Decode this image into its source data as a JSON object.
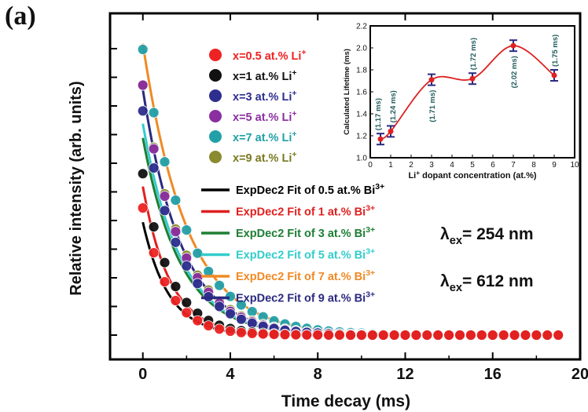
{
  "panel_label": "(a)",
  "chart_data": [
    {
      "type": "scatter",
      "xlabel": "Time decay (ms)",
      "ylabel": "Relative intensity (arb. units)",
      "xlim": [
        -1.5,
        20
      ],
      "x_ticks": [
        "0",
        "4",
        "8",
        "12",
        "16",
        "20"
      ],
      "x_tick_values": [
        0,
        4,
        8,
        12,
        16,
        20
      ],
      "grid": false,
      "legend_position": "top-center",
      "annotations": [
        {
          "symbol": "λ",
          "sub": "ex",
          "text": "= 254 nm"
        },
        {
          "symbol": "λ",
          "sub": "ex",
          "text": "= 612 nm"
        }
      ],
      "x": [
        0,
        0.5,
        1,
        1.5,
        2,
        2.5,
        3,
        3.5,
        4,
        4.5,
        5,
        5.5,
        6,
        6.5,
        7,
        7.5,
        8,
        8.5,
        9,
        9.5,
        10,
        10.5,
        11,
        11.5,
        12,
        12.5,
        13,
        13.5,
        14,
        14.5,
        15,
        15.5,
        16,
        16.5,
        17,
        17.5,
        18,
        18.5,
        19
      ],
      "series": [
        {
          "name": "x=0.5 at.% Li",
          "sup": "+",
          "color": "#ee2222",
          "y0": 0.445,
          "tau": 1.15
        },
        {
          "name": "x=1 at.% Li",
          "sup": "+",
          "color": "#111111",
          "y0": 0.565,
          "tau": 1.25
        },
        {
          "name": "x=3 at.% Li",
          "sup": "+",
          "color": "#2e2e8e",
          "y0": 0.785,
          "tau": 1.7
        },
        {
          "name": "x=5 at.% Li",
          "sup": "+",
          "color": "#8a2ea0",
          "y0": 0.875,
          "tau": 1.7
        },
        {
          "name": "x=7 at.% Li",
          "sup": "+",
          "color": "#22a0a8",
          "y0": 1.0,
          "tau": 2.0
        },
        {
          "name": "x=9 at.% Li",
          "sup": "+",
          "color": "#8a8a2e",
          "y0": 0.875,
          "tau": 1.75
        }
      ],
      "fits": [
        {
          "name": "ExpDec2 Fit of 0.5 at.% Bi",
          "sup": "3+",
          "color": "#000000",
          "y0": 0.395,
          "tau": 1.17
        },
        {
          "name": "ExpDec2 Fit of 1 at.% Bi",
          "sup": "3+",
          "color": "#e02020",
          "y0": 0.52,
          "tau": 1.24
        },
        {
          "name": "ExpDec2 Fit of 3 at.% Bi",
          "sup": "3+",
          "color": "#1e7e34",
          "y0": 0.69,
          "tau": 1.71
        },
        {
          "name": "ExpDec2 Fit of 5 at.% Bi",
          "sup": "3+",
          "color": "#33cccc",
          "y0": 0.74,
          "tau": 1.72
        },
        {
          "name": "ExpDec2 Fit of 7 at.% Bi",
          "sup": "3+",
          "color": "#f08a24",
          "y0": 1.02,
          "tau": 2.02
        },
        {
          "name": "ExpDec2 Fit of 9 at.% Bi",
          "sup": "3+",
          "color": "#2a2a80",
          "y0": 0.86,
          "tau": 1.75
        }
      ]
    },
    {
      "type": "line",
      "xlabel": "Li",
      "xlabel_sup": "+",
      "xlabel_rest": " dopant concentration (at.%)",
      "ylabel": "Calculated Lifetime (ms)",
      "xlim": [
        0,
        10
      ],
      "ylim": [
        1.0,
        2.2
      ],
      "x_ticks": [
        "0",
        "1",
        "2",
        "3",
        "4",
        "5",
        "6",
        "7",
        "8",
        "9",
        "10"
      ],
      "y_ticks": [
        "1.0",
        "1.2",
        "1.4",
        "1.6",
        "1.8",
        "2.0",
        "2.2"
      ],
      "x": [
        0.5,
        1,
        3,
        5,
        7,
        9
      ],
      "y": [
        1.17,
        1.24,
        1.71,
        1.72,
        2.02,
        1.75
      ],
      "error": [
        0.05,
        0.05,
        0.05,
        0.05,
        0.05,
        0.05
      ],
      "point_labels": [
        "(1.17 ms)",
        "(1.24 ms)",
        "(1.71 ms)",
        "(1.72 ms)",
        "(2.02 ms)",
        "(1.75 ms)"
      ],
      "colors": {
        "line": "#dd2222",
        "marker": "#dd2222",
        "error": "#2a2a80",
        "label": "#1f5a5a"
      }
    }
  ]
}
